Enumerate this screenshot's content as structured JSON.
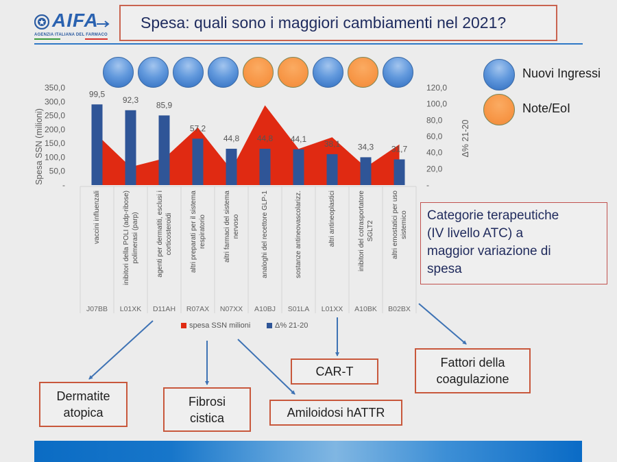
{
  "header": {
    "logo_name": "AIFA",
    "logo_tagline": "AGENZIA ITALIANA DEL FARMACO",
    "title": "Spesa: quali sono i maggiori cambiamenti nel 2021?"
  },
  "markers_legend": [
    {
      "key": "nuovi",
      "label": "Nuovi Ingressi"
    },
    {
      "key": "note",
      "label": "Note/EoI"
    }
  ],
  "markers_row": [
    "nuovi",
    "nuovi",
    "nuovi",
    "nuovi",
    "note",
    "note",
    "nuovi",
    "note",
    "nuovi"
  ],
  "info_box": {
    "lines": [
      "Categorie terapeutiche",
      "(IV livello ATC) a",
      "maggior variazione di",
      "spesa"
    ]
  },
  "callouts": {
    "dermatite": [
      "Dermatite",
      "atopica"
    ],
    "fibrosi": [
      "Fibrosi",
      "cistica"
    ],
    "amiloidosi": [
      "Amiloidosi hATTR"
    ],
    "car_t": [
      "CAR-T"
    ],
    "fattori": [
      "Fattori della",
      "coagulazione"
    ]
  },
  "colors": {
    "area_red": "#e02a12",
    "bar_blue": "#2f5597",
    "callout_border": "#c8573b",
    "arrow_blue": "#3d72b4",
    "title_navy": "#1e2b5e"
  },
  "chart_data": {
    "type": "bar",
    "title": "",
    "categories": [
      "J07BB",
      "L01XK",
      "D11AH",
      "R07AX",
      "N07XX",
      "A10BJ",
      "S01LA",
      "L01XX",
      "A10BK",
      "B02BX"
    ],
    "category_labels": [
      [
        "vaccini influenzali"
      ],
      [
        "inibitori della POLI (adp-ribose)",
        "polimerasi (parp)"
      ],
      [
        "agenti per dermatiti, esclusi i",
        "corticosteroidi"
      ],
      [
        "altri preparati per il sistema",
        "respiratorio"
      ],
      [
        "altri farmaci del sistema",
        "nervoso"
      ],
      [
        "analoghi del recettore GLP-1"
      ],
      [
        "sostanze antineovascolarizz."
      ],
      [
        "altri antineoplastici"
      ],
      [
        "inibitori del cotrasportatore",
        "SGLT2"
      ],
      [
        "altri emostatici per uso",
        "sistemico"
      ]
    ],
    "series": [
      {
        "name": "spesa SSN milioni",
        "type": "area",
        "axis": "left",
        "color": "#e02a12",
        "values": [
          181,
          65,
          96,
          207,
          55,
          287,
          130,
          172,
          64,
          146
        ]
      },
      {
        "name": "Δ% 21-20",
        "type": "bar",
        "axis": "right",
        "color": "#2f5597",
        "values": [
          99.5,
          92.3,
          85.9,
          57.2,
          44.8,
          44.8,
          44.1,
          38.1,
          34.3,
          31.7
        ],
        "data_labels": [
          "99,5",
          "92,3",
          "85,9",
          "57,2",
          "44,8",
          "44,8",
          "44,1",
          "38,1",
          "34,3",
          "31,7"
        ]
      }
    ],
    "xlabel": "",
    "ylabel": "Spesa SSN (milioni)",
    "ylim": [
      0,
      350
    ],
    "yticks": [
      "-",
      "50,0",
      "100,0",
      "150,0",
      "200,0",
      "250,0",
      "300,0",
      "350,0"
    ],
    "y2label": "Δ% 21-20",
    "y2lim": [
      0,
      120
    ],
    "y2ticks": [
      "-",
      "20,0",
      "40,0",
      "60,0",
      "80,0",
      "100,0",
      "120,0"
    ],
    "legend_position": "bottom",
    "grid": false
  }
}
